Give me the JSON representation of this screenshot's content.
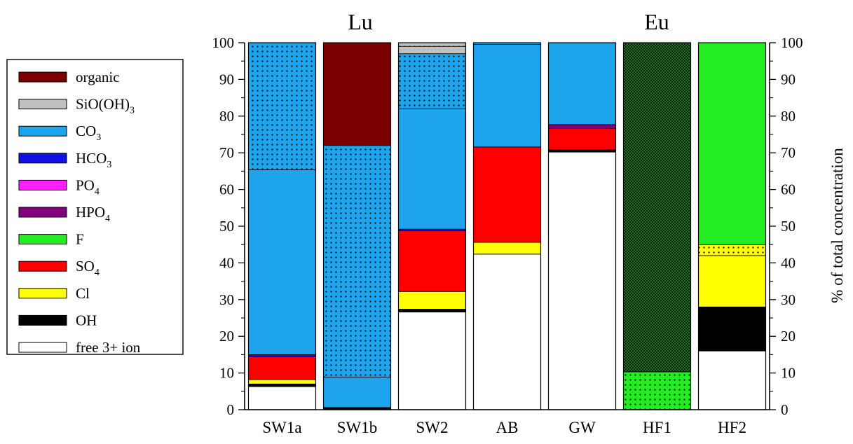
{
  "chart_data": {
    "type": "bar",
    "stacked": true,
    "group_titles": [
      "Lu",
      "Eu"
    ],
    "categories": [
      "SW1a",
      "SW1b",
      "SW2",
      "AB",
      "GW",
      "HF1",
      "HF2"
    ],
    "ylabel_right": "% of total concentration",
    "ylim": [
      0,
      100
    ],
    "yticks": [
      0,
      10,
      20,
      30,
      40,
      50,
      60,
      70,
      80,
      90,
      100
    ],
    "legend_position": "left",
    "legend": [
      {
        "label": "organic",
        "sub": ""
      },
      {
        "label": "SiO(OH)",
        "sub": "3"
      },
      {
        "label": "CO",
        "sub": "3"
      },
      {
        "label": "HCO",
        "sub": "3"
      },
      {
        "label": "PO",
        "sub": "4"
      },
      {
        "label": "HPO",
        "sub": "4"
      },
      {
        "label": "F",
        "sub": ""
      },
      {
        "label": "SO",
        "sub": "4"
      },
      {
        "label": "Cl",
        "sub": ""
      },
      {
        "label": "OH",
        "sub": ""
      },
      {
        "label": "free 3+ ion",
        "sub": ""
      }
    ],
    "colors": {
      "organic": "#7a0000",
      "SiO(OH)3": "#c0c0c0",
      "CO3": "#1ea4ec",
      "HCO3": "#1010e0",
      "PO4": "#ff20ff",
      "HPO4": "#800080",
      "F": "#22ee22",
      "SO4": "#ff0000",
      "Cl": "#ffff00",
      "OH": "#000000",
      "free 3+ ion": "#ffffff"
    },
    "bars": [
      {
        "category": "SW1a",
        "segments": [
          {
            "species": "free 3+ ion",
            "value": 6.3
          },
          {
            "species": "OH",
            "value": 0.7
          },
          {
            "species": "Cl",
            "value": 1.2
          },
          {
            "species": "SO4",
            "value": 6.2
          },
          {
            "species": "HCO3",
            "value": 0.6
          },
          {
            "species": "CO3",
            "value": 50.4
          },
          {
            "species": "CO3",
            "value": 34.6,
            "hatch": "dots"
          }
        ]
      },
      {
        "category": "SW1b",
        "segments": [
          {
            "species": "OH",
            "value": 0.6
          },
          {
            "species": "CO3",
            "value": 8.3
          },
          {
            "species": "CO3",
            "value": 63.1,
            "hatch": "dots"
          },
          {
            "species": "organic",
            "value": 28.0
          }
        ]
      },
      {
        "category": "SW2",
        "segments": [
          {
            "species": "free 3+ ion",
            "value": 26.6
          },
          {
            "species": "OH",
            "value": 0.8
          },
          {
            "species": "Cl",
            "value": 4.8
          },
          {
            "species": "SO4",
            "value": 16.6
          },
          {
            "species": "HCO3",
            "value": 0.4
          },
          {
            "species": "CO3",
            "value": 32.8
          },
          {
            "species": "CO3",
            "value": 15.0,
            "hatch": "dots"
          },
          {
            "species": "SiO(OH)3",
            "value": 2.0
          },
          {
            "species": "SiO(OH)3",
            "value": 1.0,
            "hatch": "dots"
          }
        ]
      },
      {
        "category": "AB",
        "segments": [
          {
            "species": "free 3+ ion",
            "value": 42.4
          },
          {
            "species": "Cl",
            "value": 3.2
          },
          {
            "species": "SO4",
            "value": 26.0
          },
          {
            "species": "CO3",
            "value": 27.9
          },
          {
            "species": "CO3",
            "value": 0.5,
            "hatch": "dots"
          }
        ]
      },
      {
        "category": "GW",
        "segments": [
          {
            "species": "free 3+ ion",
            "value": 70.2
          },
          {
            "species": "OH",
            "value": 0.6
          },
          {
            "species": "SO4",
            "value": 5.8
          },
          {
            "species": "HPO4",
            "value": 1.1
          },
          {
            "species": "CO3",
            "value": 22.3
          }
        ]
      },
      {
        "category": "HF1",
        "segments": [
          {
            "species": "F",
            "value": 10.3,
            "hatch": "dots"
          },
          {
            "species": "F",
            "value": 89.7,
            "hatch": "crosshatch"
          }
        ]
      },
      {
        "category": "HF2",
        "segments": [
          {
            "species": "free 3+ ion",
            "value": 16.0
          },
          {
            "species": "OH",
            "value": 12.0
          },
          {
            "species": "Cl",
            "value": 14.0
          },
          {
            "species": "Cl",
            "value": 3.0,
            "hatch": "dots"
          },
          {
            "species": "F",
            "value": 55.0
          }
        ]
      }
    ]
  }
}
